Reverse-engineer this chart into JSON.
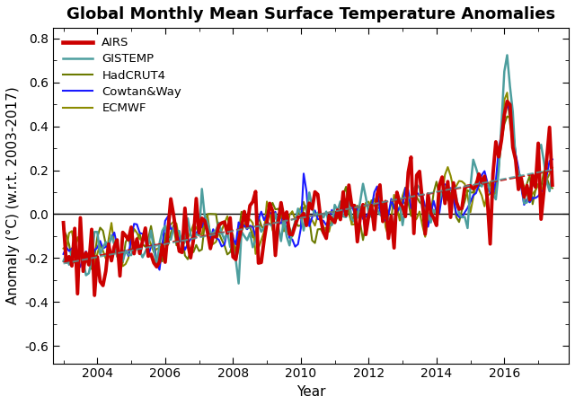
{
  "title": "Global Monthly Mean Surface Temperature Anomalies",
  "xlabel": "Year",
  "ylabel": "Anomaly (°C) (w.r.t. 2003-2017)",
  "ylim": [
    -0.68,
    0.85
  ],
  "yticks": [
    -0.6,
    -0.4,
    -0.2,
    0.0,
    0.2,
    0.4,
    0.6,
    0.8
  ],
  "xlim": [
    2002.7,
    2017.9
  ],
  "xticks": [
    2004,
    2006,
    2008,
    2010,
    2012,
    2014,
    2016
  ],
  "legend_entries": [
    "AIRS",
    "GISTEMP",
    "HadCRUT4",
    "Cowtan&Way",
    "ECMWF"
  ],
  "legend_colors": [
    "#cc0000",
    "#4d9e9e",
    "#6b7a00",
    "#1a1aff",
    "#8b8b00"
  ],
  "legend_linewidths": [
    2.8,
    1.8,
    1.5,
    1.5,
    1.5
  ],
  "trend_color_airs": "#cc0000",
  "trend_color_gis": "#4d9e9e",
  "background_color": "#ffffff",
  "title_fontsize": 13,
  "axis_fontsize": 11,
  "tick_fontsize": 10
}
